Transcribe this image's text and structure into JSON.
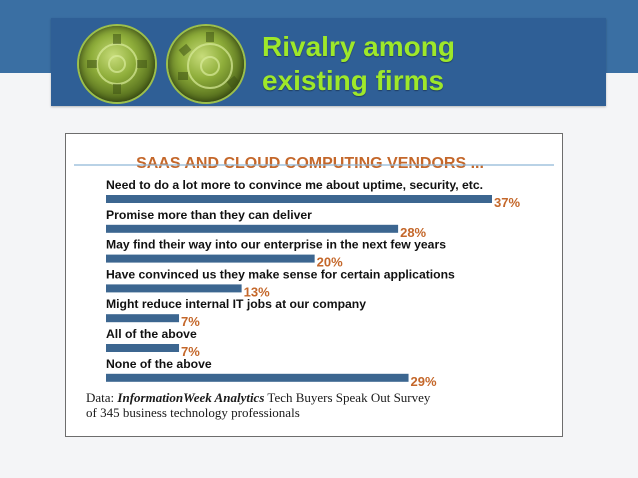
{
  "slide": {
    "title_line1": "Rivalry among",
    "title_line2": "existing firms",
    "colors": {
      "band": "#3a6fa3",
      "title_box": "#2f5f96",
      "title_text": "#9ee82a"
    }
  },
  "chart_data": {
    "type": "bar",
    "orientation": "horizontal",
    "title": "SAAS AND CLOUD COMPUTING VENDORS ...",
    "categories": [
      "Need to do a lot more to convince me about uptime, security, etc.",
      "Promise more than they can deliver",
      "May find their way into our enterprise in the next few years",
      "Have convinced us they make sense for certain applications",
      "Might reduce internal IT jobs at our company",
      "All of the above",
      "None of the above"
    ],
    "values": [
      37,
      28,
      20,
      13,
      7,
      7,
      29
    ],
    "value_labels": [
      "37%",
      "28%",
      "20%",
      "13%",
      "7%",
      "7%",
      "29%"
    ],
    "unit": "%",
    "bar_color": "#3c6690",
    "label_color": "#c4672a",
    "grid": false,
    "source_prefix": "Data: ",
    "source_italic": "InformationWeek Analytics",
    "source_rest": " Tech Buyers Speak Out Survey",
    "source_line2": "of 345 business technology professionals"
  }
}
